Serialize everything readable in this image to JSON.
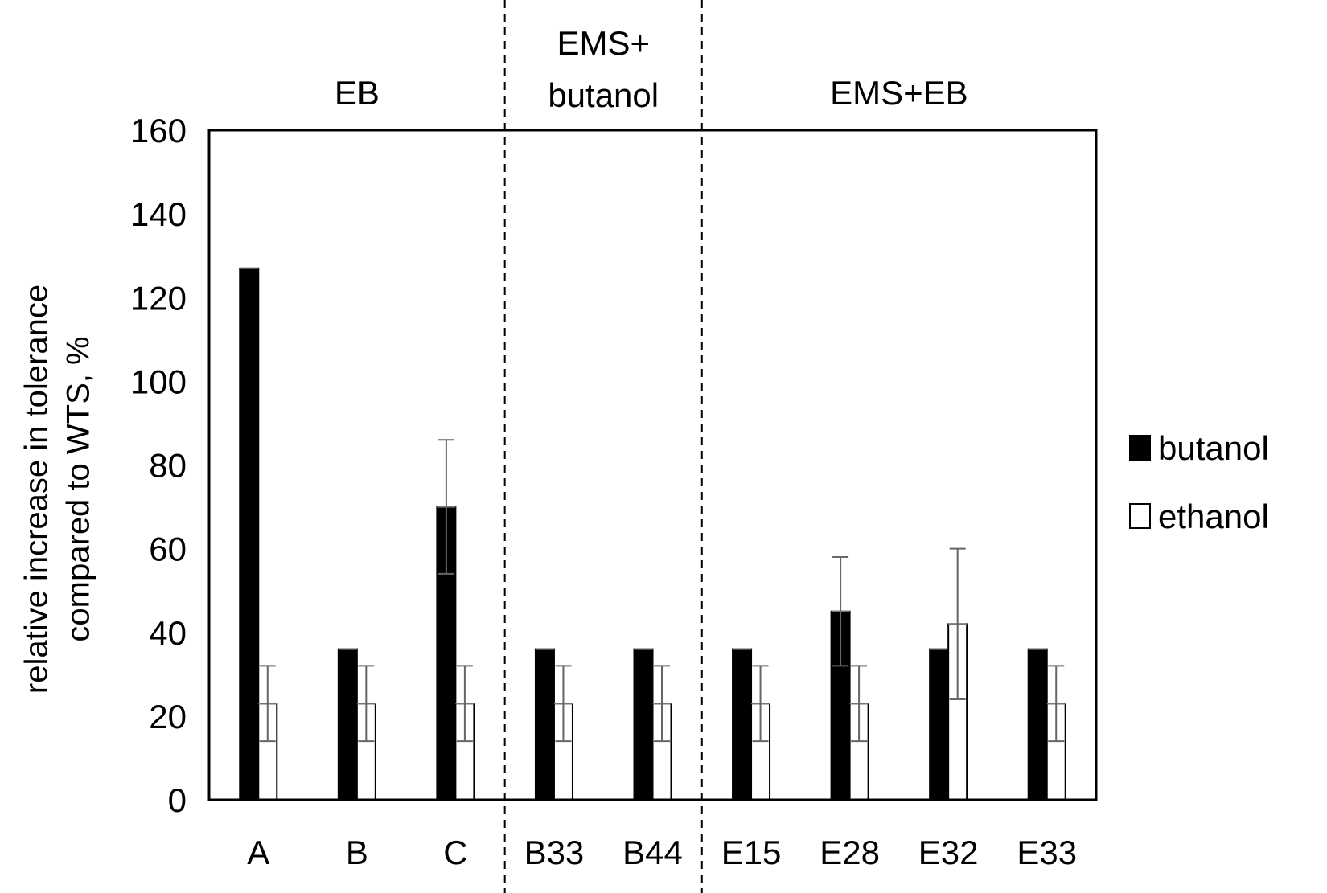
{
  "chart_data": {
    "type": "bar",
    "categories": [
      "A",
      "B",
      "C",
      "B33",
      "B44",
      "E15",
      "E28",
      "E32",
      "E33"
    ],
    "groups": [
      {
        "label_lines": [
          "EB"
        ],
        "categories": [
          "A",
          "B",
          "C"
        ]
      },
      {
        "label_lines": [
          "EMS+",
          "butanol"
        ],
        "categories": [
          "B33",
          "B44"
        ]
      },
      {
        "label_lines": [
          "EMS+EB"
        ],
        "categories": [
          "E15",
          "E28",
          "E32",
          "E33"
        ]
      }
    ],
    "series": [
      {
        "name": "butanol",
        "color": "#000000",
        "values": [
          127,
          36,
          70,
          36,
          36,
          36,
          45,
          36,
          36
        ],
        "error": [
          null,
          null,
          16,
          null,
          null,
          null,
          13,
          null,
          null
        ]
      },
      {
        "name": "ethanol",
        "color": "#ffffff",
        "values": [
          23,
          23,
          23,
          23,
          23,
          23,
          23,
          42,
          23
        ],
        "error": [
          9,
          9,
          9,
          9,
          9,
          9,
          9,
          18,
          9
        ]
      }
    ],
    "ylabel_lines": [
      "relative increase in tolerance",
      "compared to WTS, %"
    ],
    "xlabel": "",
    "ylim": [
      0,
      160
    ],
    "yticks": [
      0,
      20,
      40,
      60,
      80,
      100,
      120,
      140,
      160
    ],
    "grid": false,
    "legend_position": "right"
  }
}
